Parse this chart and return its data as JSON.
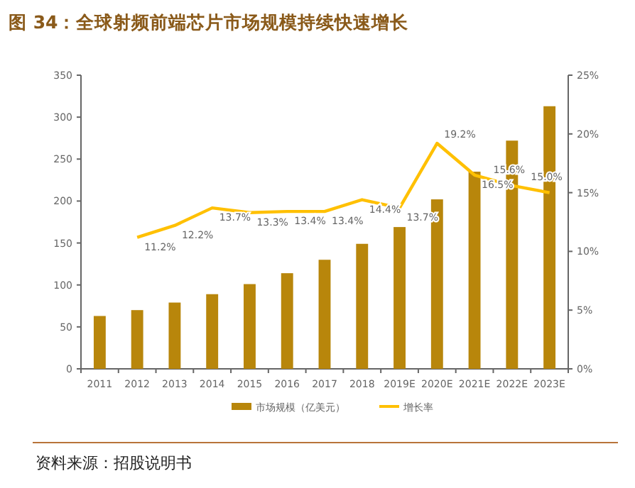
{
  "chart_data": {
    "type": "bar",
    "title": "图 34：全球射频前端芯片市场规模持续快速增长",
    "categories": [
      "2011",
      "2012",
      "2013",
      "2014",
      "2015",
      "2016",
      "2017",
      "2018",
      "2019E",
      "2020E",
      "2021E",
      "2022E",
      "2023E"
    ],
    "series": [
      {
        "name": "市场规模（亿美元）",
        "color": "#b8860b",
        "values": [
          63,
          70,
          79,
          89,
          101,
          114,
          130,
          149,
          169,
          202,
          235,
          272,
          313
        ]
      },
      {
        "name": "增长率",
        "type": "line",
        "axis": "y2",
        "color": "#ffc000",
        "values": [
          null,
          11.2,
          12.2,
          13.7,
          13.3,
          13.4,
          13.4,
          14.4,
          13.7,
          19.2,
          16.5,
          15.6,
          15.0
        ],
        "value_labels": [
          null,
          "11.2%",
          "12.2%",
          "13.7%",
          "13.3%",
          "13.4%",
          "13.4%",
          "14.4%",
          "13.7%",
          "19.2%",
          "16.5%",
          "15.6%",
          "15.0%"
        ]
      }
    ],
    "ylim": [
      0,
      350
    ],
    "yticks": [
      0,
      50,
      100,
      150,
      200,
      250,
      300,
      350
    ],
    "y2lim": [
      0,
      25
    ],
    "y2ticks": [
      {
        "value": 0,
        "label": "0%"
      },
      {
        "value": 5,
        "label": "5%"
      },
      {
        "value": 10,
        "label": "10%"
      },
      {
        "value": 15,
        "label": "15%"
      },
      {
        "value": 20,
        "label": "20%"
      },
      {
        "value": 25,
        "label": "25%"
      }
    ],
    "legend": "bottom",
    "grid": false,
    "annotations": [
      "资料来源：招股说明书"
    ]
  }
}
